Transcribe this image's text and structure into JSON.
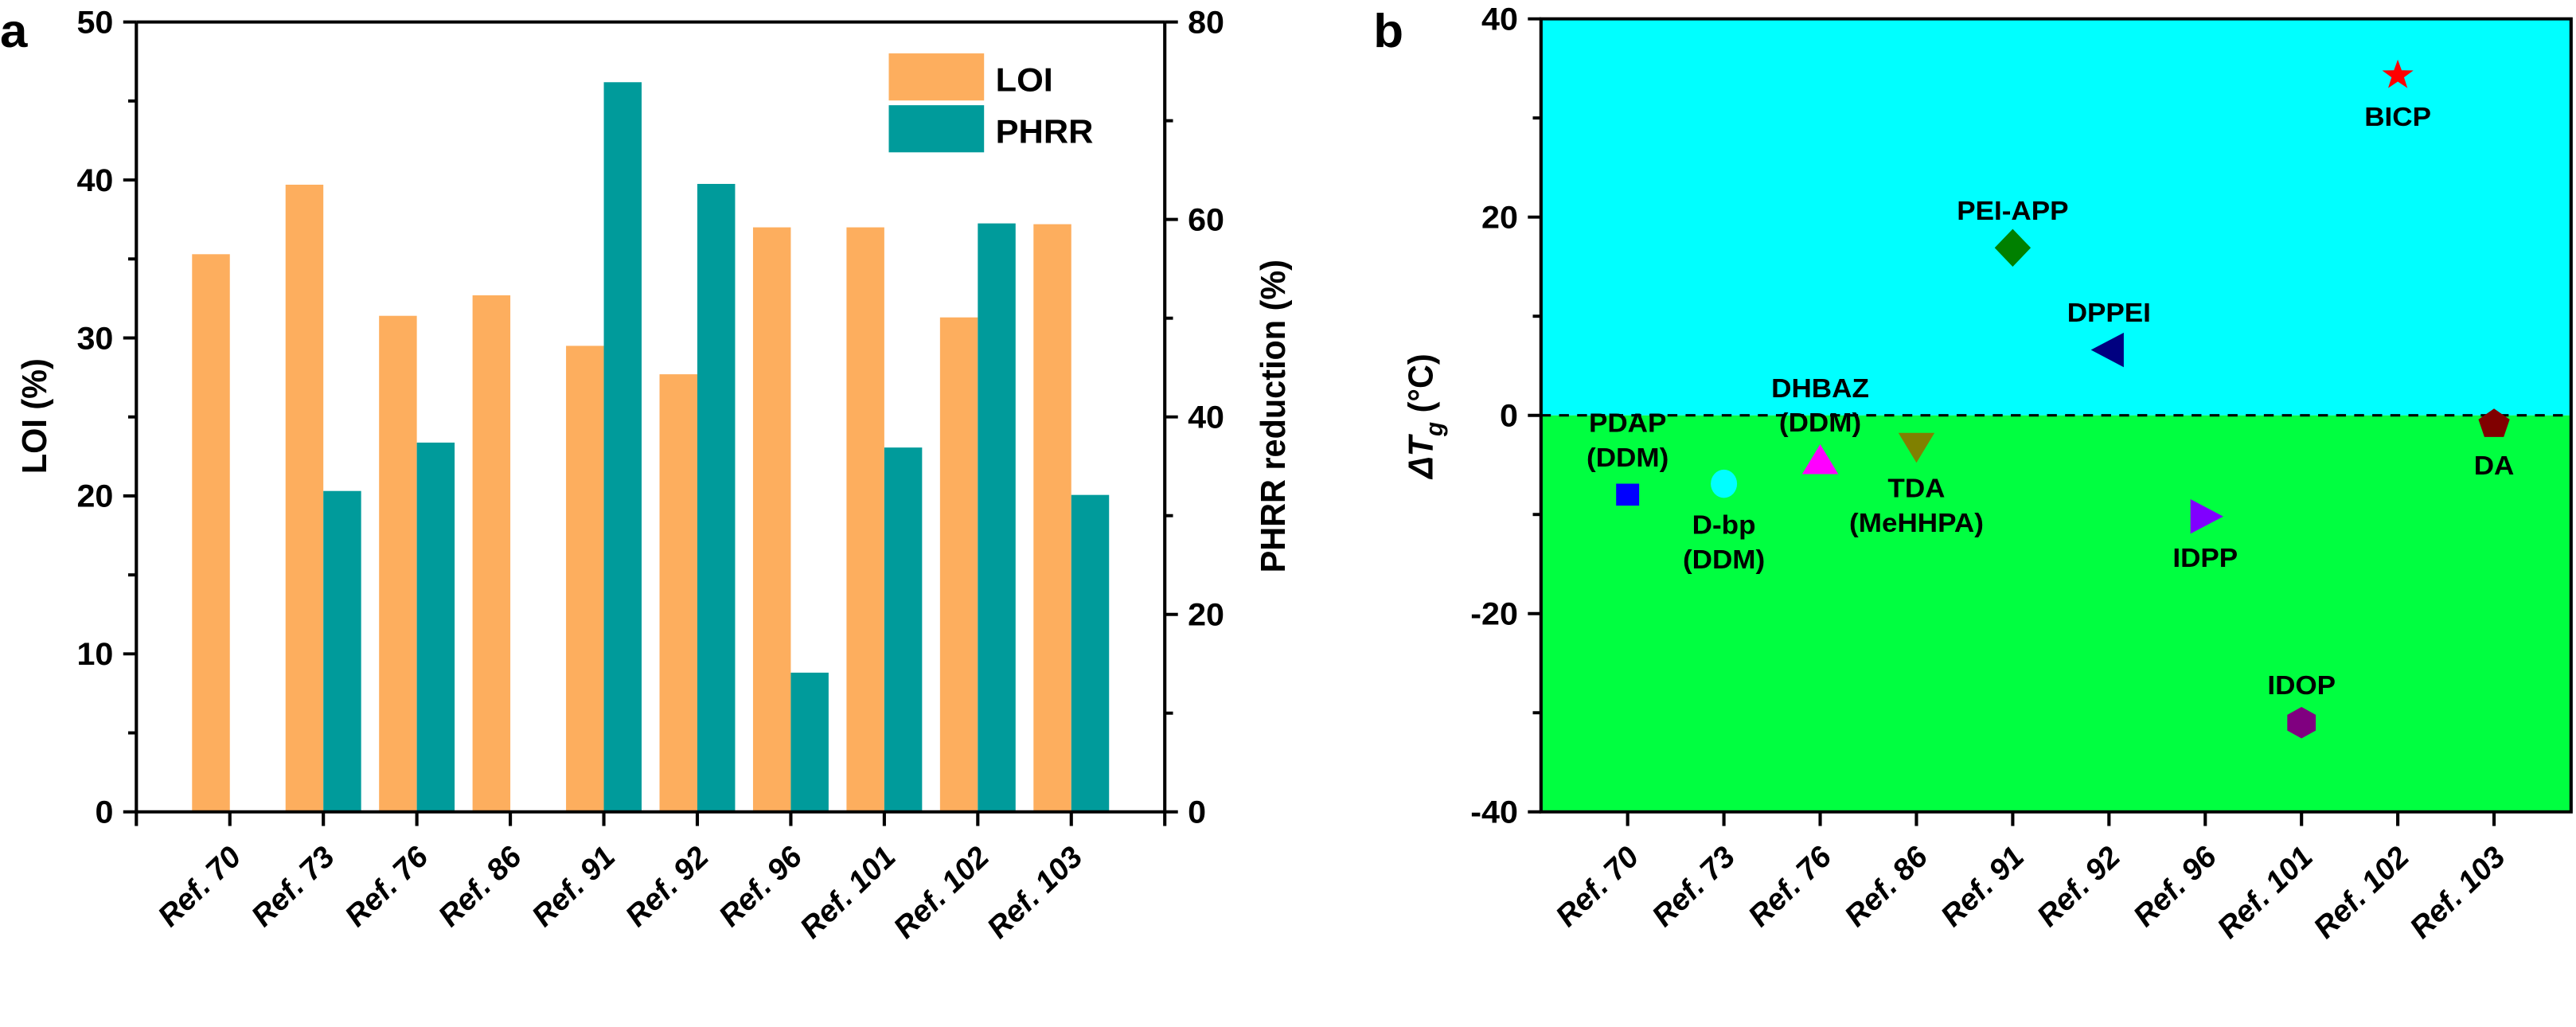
{
  "chart_data": [
    {
      "panel": "a",
      "type": "bar",
      "categories": [
        "Ref. 70",
        "Ref. 73",
        "Ref. 76",
        "Ref. 86",
        "Ref. 91",
        "Ref. 92",
        "Ref. 96",
        "Ref. 101",
        "Ref. 102",
        "Ref. 103"
      ],
      "series": [
        {
          "name": "LOI",
          "axis": "left",
          "color": "#FDAE5E",
          "values": [
            35.3,
            39.7,
            31.4,
            32.7,
            29.5,
            27.7,
            37.0,
            37.0,
            31.3,
            37.2
          ]
        },
        {
          "name": "PHRR",
          "axis": "right",
          "color": "#009B9B",
          "values": [
            null,
            32.5,
            37.4,
            null,
            73.9,
            63.6,
            14.1,
            36.9,
            59.6,
            32.1
          ]
        }
      ],
      "xlabel": "",
      "ylabel": "LOI (%)",
      "y2label": "PHRR reduction (%)",
      "ylim": [
        0,
        50
      ],
      "y2lim": [
        0,
        80
      ],
      "yticks": [
        0,
        10,
        20,
        30,
        40,
        50
      ],
      "y2ticks": [
        0,
        20,
        40,
        60,
        80
      ],
      "legend": {
        "position": "top-right",
        "entries": [
          "LOI",
          "PHRR"
        ]
      },
      "grid": false
    },
    {
      "panel": "b",
      "type": "scatter",
      "categories": [
        "Ref. 70",
        "Ref. 73",
        "Ref. 76",
        "Ref. 86",
        "Ref. 91",
        "Ref. 92",
        "Ref. 96",
        "Ref. 101",
        "Ref. 102",
        "Ref. 103"
      ],
      "points": [
        {
          "x": "Ref. 70",
          "y": -8.0,
          "label": [
            "PDAP",
            "(DDM)"
          ],
          "marker": "square",
          "color": "#0000FF",
          "label_pos": "above"
        },
        {
          "x": "Ref. 73",
          "y": -6.9,
          "label": [
            "D-bp",
            "(DDM)"
          ],
          "marker": "circle",
          "color": "#00FFFF",
          "label_pos": "below"
        },
        {
          "x": "Ref. 76",
          "y": -4.5,
          "label": [
            "DHBAZ",
            "(DDM)"
          ],
          "marker": "triangle-up",
          "color": "#FF00FF",
          "label_pos": "above"
        },
        {
          "x": "Ref. 86",
          "y": -3.2,
          "label": [
            "TDA",
            "(MeHHPA)"
          ],
          "marker": "triangle-down",
          "color": "#808000",
          "label_pos": "below"
        },
        {
          "x": "Ref. 91",
          "y": 16.9,
          "label": [
            "PEI-APP"
          ],
          "marker": "diamond",
          "color": "#008000",
          "label_pos": "above"
        },
        {
          "x": "Ref. 92",
          "y": 6.6,
          "label": [
            "DPPEI"
          ],
          "marker": "triangle-left",
          "color": "#000080",
          "label_pos": "above"
        },
        {
          "x": "Ref. 96",
          "y": -10.2,
          "label": [
            "IDPP"
          ],
          "marker": "triangle-right",
          "color": "#8000FF",
          "label_pos": "below"
        },
        {
          "x": "Ref. 101",
          "y": -31.0,
          "label": [
            "IDOP"
          ],
          "marker": "hexagon",
          "color": "#800080",
          "label_pos": "above"
        },
        {
          "x": "Ref. 102",
          "y": 34.3,
          "label": [
            "BICP"
          ],
          "marker": "star",
          "color": "#FF0000",
          "label_pos": "below"
        },
        {
          "x": "Ref. 103",
          "y": -0.9,
          "label": [
            "DA"
          ],
          "marker": "pentagon",
          "color": "#800000",
          "label_pos": "below"
        }
      ],
      "xlabel": "",
      "ylabel": "ΔT_g (°C)",
      "ylabel_parts": {
        "delta": "Δ",
        "symbol": "T",
        "subscript": "g",
        "unit": " (°C)"
      },
      "ylim": [
        -40,
        40
      ],
      "yticks": [
        -40,
        -20,
        0,
        20,
        40
      ],
      "reference_line": {
        "y": 0,
        "style": "dashed"
      },
      "background_regions": [
        {
          "from": 0,
          "to": 40,
          "color": "#00FFFF"
        },
        {
          "from": -40,
          "to": 0,
          "color": "#00FF40"
        }
      ],
      "grid": false
    }
  ],
  "panel_labels": {
    "a": "a",
    "b": "b"
  }
}
